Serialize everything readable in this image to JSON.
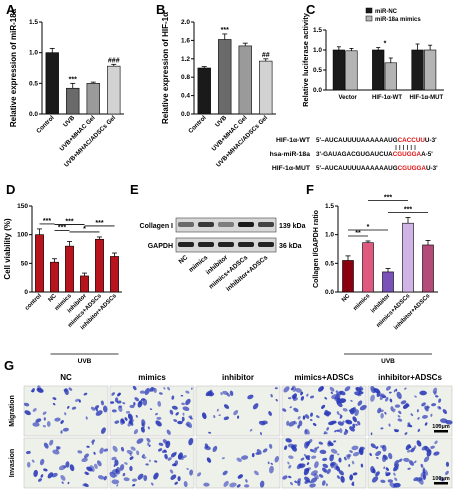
{
  "panels": {
    "A": {
      "letter": "A"
    },
    "B": {
      "letter": "B"
    },
    "C": {
      "letter": "C"
    },
    "D": {
      "letter": "D"
    },
    "E": {
      "letter": "E"
    },
    "F": {
      "letter": "F"
    },
    "G": {
      "letter": "G"
    }
  },
  "chart_data": [
    {
      "panel": "A",
      "type": "bar",
      "categories": [
        "Control",
        "UVB",
        "UVB+MHAC Gel",
        "UVB+MHAC/ADSCs Gel"
      ],
      "values": [
        1.0,
        0.42,
        0.5,
        0.78
      ],
      "errors": [
        0.07,
        0.08,
        0.02,
        0.03
      ],
      "significance": [
        "",
        "***",
        "",
        "###"
      ],
      "ylabel": "Relative expression of miR-18a",
      "ylim": [
        0,
        1.5
      ],
      "yticks": [
        0.0,
        0.5,
        1.0,
        1.5
      ],
      "colors": [
        "#1a1a1a",
        "#6a6a6a",
        "#9a9a9a",
        "#d2d2d2"
      ]
    },
    {
      "panel": "B",
      "type": "bar",
      "categories": [
        "Control",
        "UVB",
        "UVB+MHAC Gel",
        "UVB+MHAC/ADSCs Gel"
      ],
      "values": [
        1.0,
        1.62,
        1.48,
        1.15
      ],
      "errors": [
        0.03,
        0.12,
        0.06,
        0.05
      ],
      "significance": [
        "",
        "***",
        "",
        "##"
      ],
      "ylabel": "Relative expression of HIF-1α",
      "ylim": [
        0,
        2.0
      ],
      "yticks": [
        0.0,
        0.4,
        0.8,
        1.2,
        1.6,
        2.0
      ],
      "colors": [
        "#1a1a1a",
        "#6a6a6a",
        "#9a9a9a",
        "#d2d2d2"
      ]
    },
    {
      "panel": "C",
      "type": "bar",
      "categories": [
        "Vector",
        "HIF-1α-WT",
        "HIF-1α-MUT"
      ],
      "series": [
        {
          "name": "miR-NC",
          "values": [
            1.0,
            1.0,
            1.0
          ],
          "errors": [
            0.08,
            0.06,
            0.15
          ]
        },
        {
          "name": "miR-18a mimics",
          "values": [
            0.98,
            0.68,
            1.0
          ],
          "errors": [
            0.06,
            0.12,
            0.12
          ]
        }
      ],
      "significance": [
        "",
        "*",
        ""
      ],
      "ylabel": "Relative luciferase activity",
      "ylim": [
        0,
        1.5
      ],
      "yticks": [
        0.0,
        0.5,
        1.0,
        1.5
      ],
      "colors": [
        "#1a1a1a",
        "#b4b4b4"
      ],
      "legend_position": "top-right"
    },
    {
      "panel": "D",
      "type": "bar",
      "categories": [
        "control",
        "NC",
        "mimics",
        "inhibitor",
        "mimics+ADSCs",
        "inhibitor+ADSCs"
      ],
      "values": [
        100,
        52,
        80,
        28,
        92,
        62
      ],
      "errors": [
        10,
        6,
        8,
        5,
        4,
        6
      ],
      "significance_pairs": [
        [
          "control",
          "NC",
          "***"
        ],
        [
          "NC",
          "mimics",
          "***"
        ],
        [
          "NC",
          "inhibitor",
          "***"
        ],
        [
          "mimics",
          "mimics+ADSCs",
          "*"
        ],
        [
          "inhibitor",
          "inhibitor+ADSCs",
          "***"
        ]
      ],
      "ylabel": "Cell viability (%)",
      "ylim": [
        0,
        150
      ],
      "yticks": [
        0,
        50,
        100,
        150
      ],
      "group_label": "UVB",
      "colors": [
        "#b8141e",
        "#b8141e",
        "#b8141e",
        "#b8141e",
        "#b8141e",
        "#b8141e"
      ]
    },
    {
      "panel": "F",
      "type": "bar",
      "categories": [
        "NC",
        "mimics",
        "inhibitor",
        "mimics+ADSCs",
        "inhibitor+ADSCs"
      ],
      "values": [
        0.55,
        0.86,
        0.35,
        1.2,
        0.82
      ],
      "errors": [
        0.08,
        0.03,
        0.06,
        0.1,
        0.08
      ],
      "significance_pairs": [
        [
          "NC",
          "mimics",
          "**"
        ],
        [
          "NC",
          "inhibitor",
          "*"
        ],
        [
          "mimics",
          "mimics+ADSCs",
          "***"
        ],
        [
          "inhibitor",
          "inhibitor+ADSCs",
          "***"
        ]
      ],
      "ylabel": "Collagen I/GAPDH ratio",
      "ylim": [
        0,
        1.5
      ],
      "yticks": [
        0.0,
        0.5,
        1.0,
        1.5
      ],
      "group_label": "UVB",
      "colors": [
        "#8a0010",
        "#e05a80",
        "#7a52b8",
        "#d0b4e6",
        "#b44a7a"
      ]
    }
  ],
  "sequences": {
    "rows": [
      {
        "label": "HIF-1α-WT",
        "prefix": "5'–AUCAUUUUAAAAAAUG",
        "seed": "CACCUU",
        "suffix": "U-3'"
      },
      {
        "label": "hsa-miR-18a",
        "prefix": "3'-GAUAGACGUGAUCUA",
        "seed": "CGUGGA",
        "suffix": "A-5'"
      },
      {
        "label": "HIF-1α-MUT",
        "prefix": "5'–AUCAUUUUAAAAAAUG",
        "seed": "CGUGGA",
        "suffix": "U-3'"
      }
    ]
  },
  "western_blot": {
    "bands": [
      {
        "label": "Collagen I",
        "size": "139 kDa"
      },
      {
        "label": "GAPDH",
        "size": "36 kDa"
      }
    ],
    "lanes": [
      "NC",
      "mimics",
      "inhibitor",
      "mimics+ADSCs",
      "inhibitor+ADSCs"
    ],
    "intensity_collagen": [
      0.55,
      0.8,
      0.45,
      0.95,
      0.75
    ],
    "intensity_gapdh": [
      0.9,
      0.9,
      0.9,
      0.9,
      0.9
    ]
  },
  "micrographs": {
    "columns": [
      "NC",
      "mimics",
      "inhibitor",
      "mimics+ADSCs",
      "inhibitor+ADSCs"
    ],
    "rows": [
      "Migration",
      "Invasion"
    ],
    "density": [
      [
        0.4,
        0.75,
        0.3,
        0.95,
        0.7
      ],
      [
        0.45,
        0.7,
        0.3,
        0.9,
        0.65
      ]
    ],
    "scale_bar": "100μm",
    "stain_color": "#2a3ab8"
  }
}
